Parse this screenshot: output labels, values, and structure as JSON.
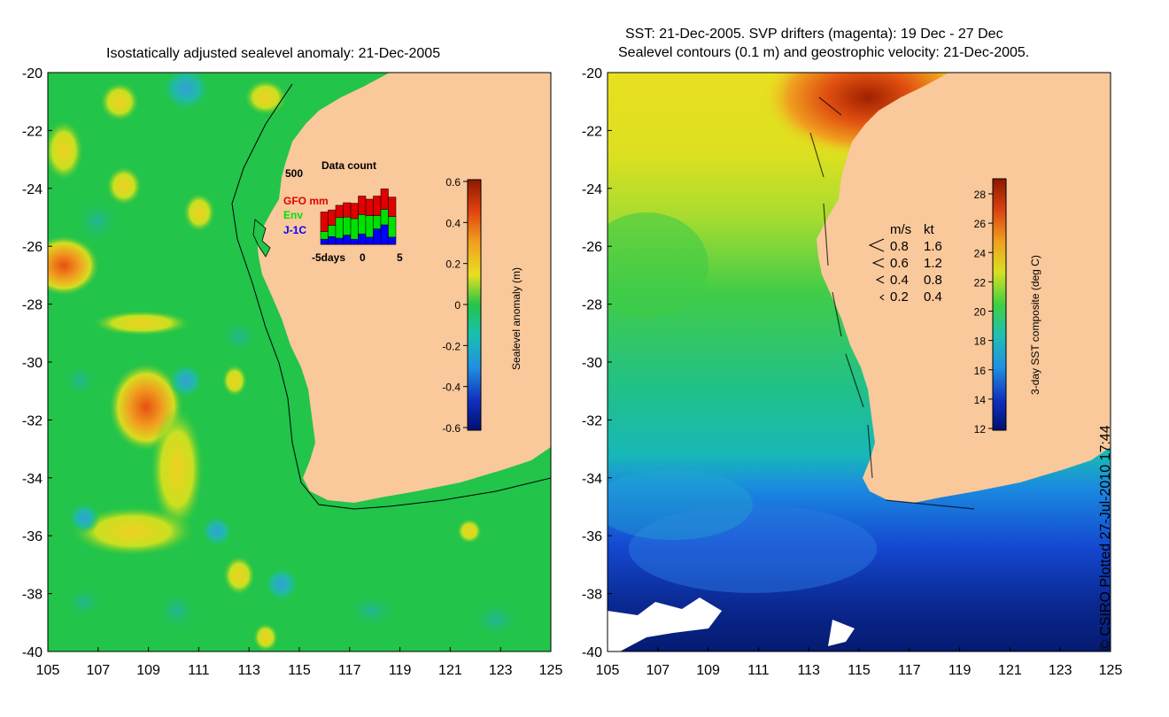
{
  "left_panel": {
    "title": "Isostatically adjusted sealevel anomaly: 21-Dec-2005",
    "y_ticks": [
      "-20",
      "-22",
      "-24",
      "-26",
      "-28",
      "-30",
      "-32",
      "-34",
      "-36",
      "-38",
      "-40"
    ],
    "x_ticks": [
      "105",
      "107",
      "109",
      "111",
      "113",
      "115",
      "117",
      "119",
      "121",
      "123",
      "125"
    ],
    "colorbar": {
      "label": "Sealevel anomaly (m)",
      "ticks": [
        "0.6",
        "0.4",
        "0.2",
        "0",
        "-0.2",
        "-0.4",
        "-0.6"
      ]
    },
    "inset": {
      "title": "Data count",
      "ymax_label": "500",
      "legend": [
        {
          "label": "GFO mm",
          "color": "#e00000"
        },
        {
          "label": "Env",
          "color": "#00e000"
        },
        {
          "label": "J-1C",
          "color": "#0000ff"
        }
      ],
      "x_labels": [
        "-5days",
        "0",
        "5"
      ],
      "bars": [
        {
          "j1c": 0.1,
          "env": 0.15,
          "gfo": 0.38
        },
        {
          "j1c": 0.15,
          "env": 0.22,
          "gfo": 0.3
        },
        {
          "j1c": 0.12,
          "env": 0.4,
          "gfo": 0.24
        },
        {
          "j1c": 0.18,
          "env": 0.35,
          "gfo": 0.28
        },
        {
          "j1c": 0.1,
          "env": 0.4,
          "gfo": 0.3
        },
        {
          "j1c": 0.2,
          "env": 0.38,
          "gfo": 0.36
        },
        {
          "j1c": 0.14,
          "env": 0.42,
          "gfo": 0.32
        },
        {
          "j1c": 0.3,
          "env": 0.26,
          "gfo": 0.38
        },
        {
          "j1c": 0.38,
          "env": 0.3,
          "gfo": 0.4
        },
        {
          "j1c": 0.14,
          "env": 0.4,
          "gfo": 0.38
        }
      ]
    }
  },
  "right_panel": {
    "title_line1": "SST: 21-Dec-2005. SVP drifters (magenta): 19 Dec - 27 Dec",
    "title_line2": "Sealevel contours (0.1 m) and geostrophic velocity: 21-Dec-2005.",
    "y_ticks": [
      "-20",
      "-22",
      "-24",
      "-26",
      "-28",
      "-30",
      "-32",
      "-34",
      "-36",
      "-38",
      "-40"
    ],
    "x_ticks": [
      "105",
      "107",
      "109",
      "111",
      "113",
      "115",
      "117",
      "119",
      "121",
      "123",
      "125"
    ],
    "colorbar": {
      "label": "3-day SST composite (deg C)",
      "ticks": [
        "28",
        "26",
        "24",
        "22",
        "20",
        "18",
        "16",
        "14",
        "12"
      ]
    },
    "velocity_legend": {
      "header_ms": "m/s",
      "header_kt": "kt",
      "rows": [
        {
          "ms": "0.8",
          "kt": "1.6"
        },
        {
          "ms": "0.6",
          "kt": "1.2"
        },
        {
          "ms": "0.4",
          "kt": "0.8"
        },
        {
          "ms": "0.2",
          "kt": "0.4"
        }
      ]
    }
  },
  "credit": "© CSIRO Plotted 27-Jul-2010 17:44",
  "colors": {
    "land": "#f9c89b",
    "sla_green": "#22c44a",
    "gfo": "#e00000",
    "env": "#00e000",
    "j1c": "#0000ff"
  }
}
